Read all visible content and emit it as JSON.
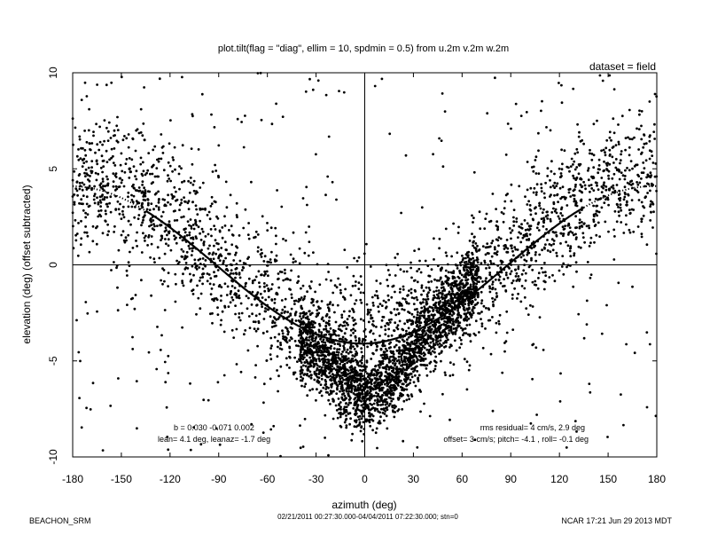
{
  "chart_data": {
    "type": "scatter",
    "title": "plot.tilt(flag = \"diag\", ellim = 10, spdmin = 0.5) from u.2m v.2m w.2m",
    "dataset_label": "dataset = field",
    "xlabel": "azimuth (deg)",
    "ylabel": "elevation (deg)  (offset subtracted)",
    "xlim": [
      -180,
      180
    ],
    "ylim": [
      -10,
      10
    ],
    "x_ticks": [
      "-180",
      "-150",
      "-120",
      "-90",
      "-60",
      "-30",
      "0",
      "30",
      "60",
      "90",
      "120",
      "150",
      "180"
    ],
    "y_ticks": [
      "-10",
      "-5",
      "0",
      "5",
      "10"
    ],
    "grid": false,
    "zero_lines": true,
    "fit_curve": {
      "lean_deg": 4.1,
      "leanaz_deg": -1.7,
      "solid_range": [
        -135,
        135
      ],
      "dotted_range_left": [
        -180,
        -135
      ],
      "dotted_range_right": [
        135,
        180
      ]
    },
    "scatter_description_points": [
      [
        -170,
        7.0
      ],
      [
        -160,
        4.1
      ],
      [
        -150,
        5.8
      ],
      [
        -140,
        3.2
      ],
      [
        -130,
        2.9
      ],
      [
        -125,
        1.5
      ],
      [
        -120,
        2.0
      ],
      [
        -110,
        1.2
      ],
      [
        -100,
        -0.5
      ],
      [
        -90,
        0.4
      ],
      [
        -80,
        -1.2
      ],
      [
        -70,
        -1.5
      ],
      [
        -60,
        -2.1
      ],
      [
        -50,
        -2.8
      ],
      [
        -40,
        -3.5
      ],
      [
        -30,
        -5.0
      ],
      [
        -20,
        -6.2
      ],
      [
        -10,
        -6.8
      ],
      [
        0,
        -7.1
      ],
      [
        10,
        -6.5
      ],
      [
        20,
        -5.9
      ],
      [
        30,
        -4.8
      ],
      [
        40,
        -3.5
      ],
      [
        50,
        -2.1
      ],
      [
        60,
        -0.8
      ],
      [
        70,
        -0.3
      ],
      [
        80,
        0.6
      ],
      [
        90,
        1.0
      ],
      [
        100,
        1.5
      ],
      [
        110,
        2.0
      ],
      [
        120,
        2.4
      ],
      [
        130,
        3.1
      ],
      [
        150,
        3.4
      ],
      [
        165,
        4.0
      ],
      [
        175,
        4.2
      ]
    ],
    "annotations": {
      "fit_coeffs": "b =  0.030 -0.071  0.002",
      "lean": "lean= 4.1 deg, leanaz= -1.7 deg",
      "rms": "rms residual= 4 cm/s, 2.9 deg",
      "offset": "offset= 3 cm/s; pitch= -4.1 , roll= -0.1 deg"
    }
  },
  "footer": {
    "left": "BEACHON_SRM",
    "center": "02/21/2011 00:27:30.000-04/04/2011 07:22:30.000; stn=0",
    "right": "NCAR 17:21 Jun 29 2013 MDT"
  }
}
